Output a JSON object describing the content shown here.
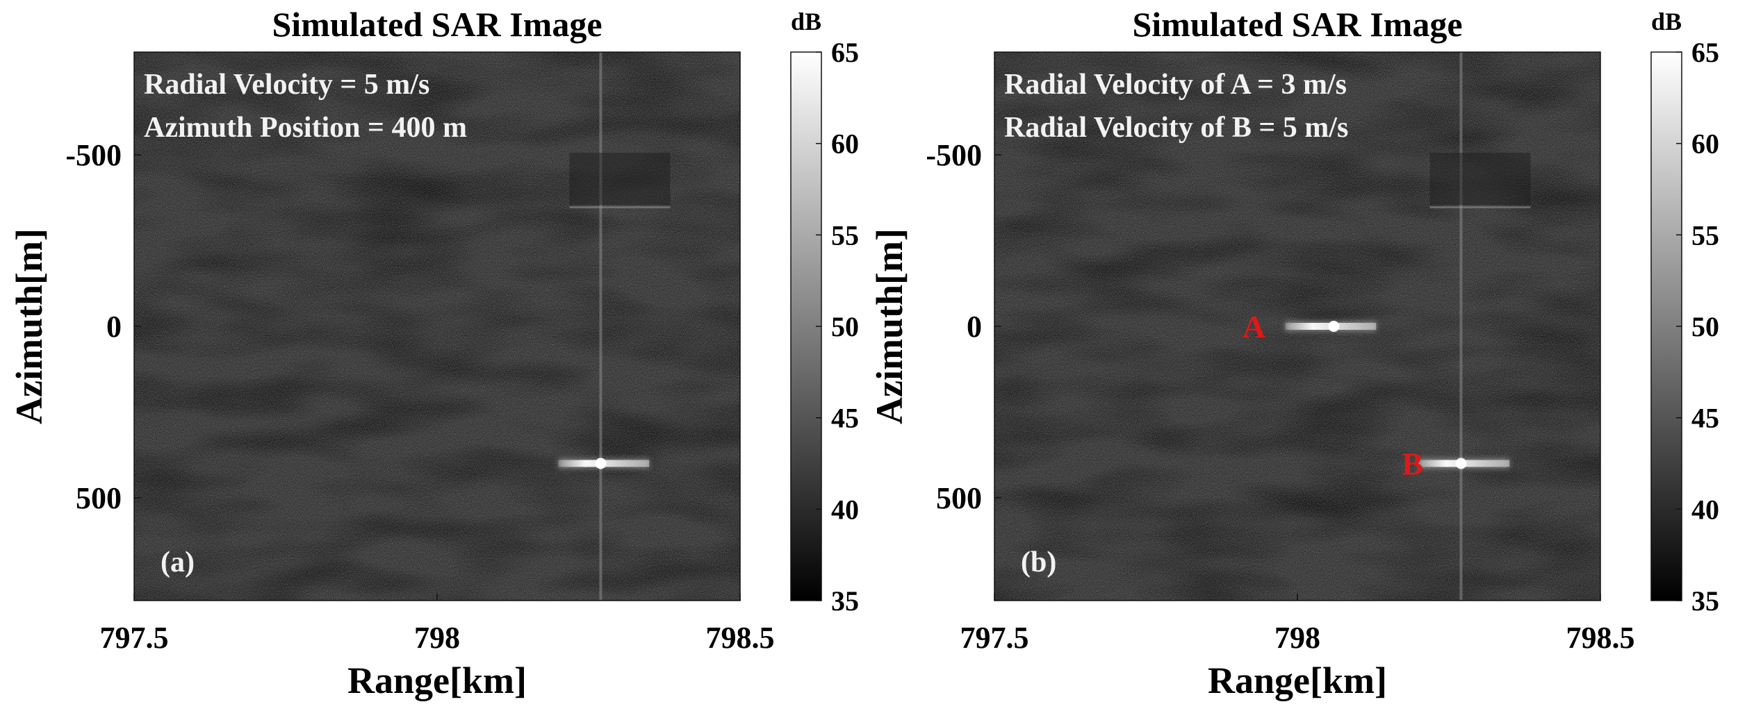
{
  "chart_data": [
    {
      "type": "heatmap",
      "panel_tag": "(a)",
      "title": "Simulated SAR Image",
      "xlabel": "Range[km]",
      "ylabel": "Azimuth[m]",
      "xlim": [
        797.5,
        798.5
      ],
      "ylim": [
        -800,
        800
      ],
      "y_direction": "reversed",
      "x_ticks": [
        797.5,
        798,
        798.5
      ],
      "x_tick_labels": [
        "797.5",
        "798",
        "798.5"
      ],
      "y_ticks": [
        -500,
        0,
        500
      ],
      "y_tick_labels": [
        "-500",
        "0",
        "500"
      ],
      "annotations": [
        "Radial Velocity = 5 m/s",
        "Azimuth Position = 400 m"
      ],
      "targets": [
        {
          "label": "",
          "range_km": 798.27,
          "azimuth_m": 400,
          "extent_km": [
            798.2,
            798.35
          ]
        }
      ],
      "vertical_line_range_km": 798.27,
      "colorbar": {
        "unit": "dB",
        "min": 35,
        "max": 65,
        "ticks": [
          "35",
          "40",
          "45",
          "50",
          "55",
          "60",
          "65"
        ],
        "colormap": "gray"
      }
    },
    {
      "type": "heatmap",
      "panel_tag": "(b)",
      "title": "Simulated SAR Image",
      "xlabel": "Range[km]",
      "ylabel": "Azimuth[m]",
      "xlim": [
        797.5,
        798.5
      ],
      "ylim": [
        -800,
        800
      ],
      "y_direction": "reversed",
      "x_ticks": [
        797.5,
        798,
        798.5
      ],
      "x_tick_labels": [
        "797.5",
        "798",
        "798.5"
      ],
      "y_ticks": [
        -500,
        0,
        500
      ],
      "y_tick_labels": [
        "-500",
        "0",
        "500"
      ],
      "annotations": [
        "Radial Velocity of A = 3 m/s",
        "Radial Velocity of B = 5 m/s"
      ],
      "targets": [
        {
          "label": "A",
          "range_km": 798.06,
          "azimuth_m": 0,
          "extent_km": [
            797.98,
            798.13
          ]
        },
        {
          "label": "B",
          "range_km": 798.27,
          "azimuth_m": 400,
          "extent_km": [
            798.2,
            798.35
          ]
        }
      ],
      "vertical_line_range_km": 798.27,
      "colorbar": {
        "unit": "dB",
        "min": 35,
        "max": 65,
        "ticks": [
          "35",
          "40",
          "45",
          "50",
          "55",
          "60",
          "65"
        ],
        "colormap": "gray"
      }
    }
  ]
}
